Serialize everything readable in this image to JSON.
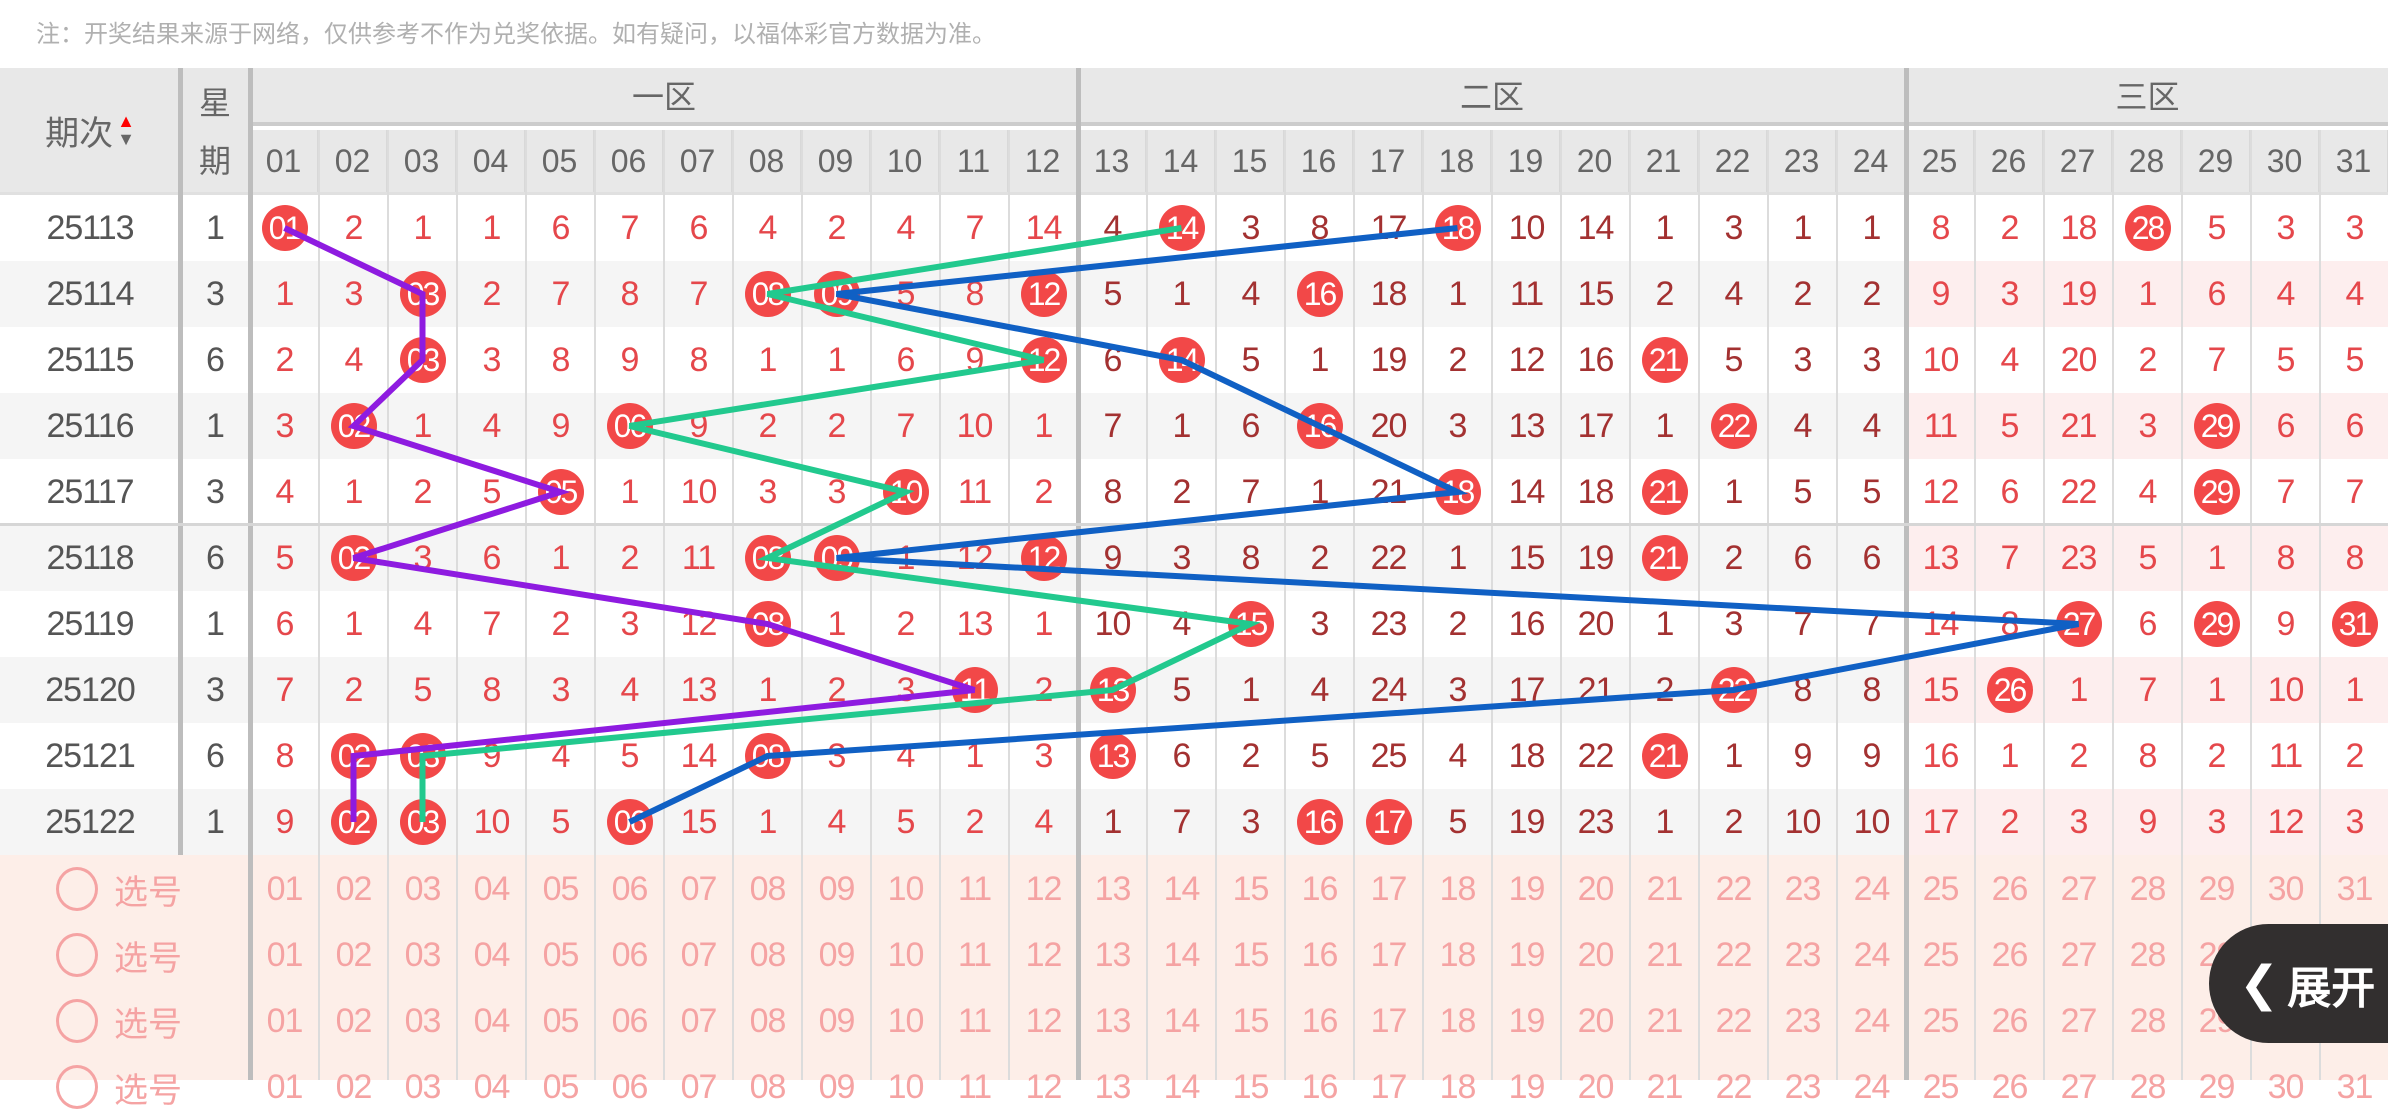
{
  "note": "注：开奖结果来源于网络，仅供参考不作为兑奖依据。如有疑问，以福体彩官方数据为准。",
  "header": {
    "period": "期次",
    "weekday_top": "星",
    "weekday_bottom": "期",
    "zones": [
      "一区",
      "二区",
      "三区"
    ],
    "numbers": [
      "01",
      "02",
      "03",
      "04",
      "05",
      "06",
      "07",
      "08",
      "09",
      "10",
      "11",
      "12",
      "13",
      "14",
      "15",
      "16",
      "17",
      "18",
      "19",
      "20",
      "21",
      "22",
      "23",
      "24",
      "25",
      "26",
      "27",
      "28",
      "29",
      "30",
      "31"
    ]
  },
  "sort_icon": "sort-up-down-icon",
  "colors": {
    "zone1": "#e5474b",
    "zone2": "#a33131",
    "zone3": "#e5474b",
    "ball": "#f24848",
    "line1": "#8e1be0",
    "line2": "#22c98e",
    "line3": "#1060c4"
  },
  "rows": [
    {
      "period": "25113",
      "weekday": "1",
      "cells": [
        "01",
        "2",
        "1",
        "1",
        "6",
        "7",
        "6",
        "4",
        "2",
        "4",
        "7",
        "14",
        "4",
        "14",
        "3",
        "8",
        "17",
        "18",
        "10",
        "14",
        "1",
        "3",
        "1",
        "1",
        "8",
        "2",
        "18",
        "28",
        "5",
        "3",
        "3"
      ],
      "balls": [
        1,
        14,
        18,
        28
      ]
    },
    {
      "period": "25114",
      "weekday": "3",
      "cells": [
        "1",
        "3",
        "03",
        "2",
        "7",
        "8",
        "7",
        "08",
        "09",
        "5",
        "8",
        "12",
        "5",
        "1",
        "4",
        "16",
        "18",
        "1",
        "11",
        "15",
        "2",
        "4",
        "2",
        "2",
        "9",
        "3",
        "19",
        "1",
        "6",
        "4",
        "4"
      ],
      "balls": [
        3,
        8,
        9,
        12,
        16
      ]
    },
    {
      "period": "25115",
      "weekday": "6",
      "cells": [
        "2",
        "4",
        "03",
        "3",
        "8",
        "9",
        "8",
        "1",
        "1",
        "6",
        "9",
        "12",
        "6",
        "14",
        "5",
        "1",
        "19",
        "2",
        "12",
        "16",
        "21",
        "5",
        "3",
        "3",
        "10",
        "4",
        "20",
        "2",
        "7",
        "5",
        "5"
      ],
      "balls": [
        3,
        12,
        14,
        21
      ]
    },
    {
      "period": "25116",
      "weekday": "1",
      "cells": [
        "3",
        "02",
        "1",
        "4",
        "9",
        "06",
        "9",
        "2",
        "2",
        "7",
        "10",
        "1",
        "7",
        "1",
        "6",
        "16",
        "20",
        "3",
        "13",
        "17",
        "1",
        "22",
        "4",
        "4",
        "11",
        "5",
        "21",
        "3",
        "29",
        "6",
        "6"
      ],
      "balls": [
        2,
        6,
        16,
        22,
        29
      ]
    },
    {
      "period": "25117",
      "weekday": "3",
      "cells": [
        "4",
        "1",
        "2",
        "5",
        "05",
        "1",
        "10",
        "3",
        "3",
        "10",
        "11",
        "2",
        "8",
        "2",
        "7",
        "1",
        "21",
        "18",
        "14",
        "18",
        "21",
        "1",
        "5",
        "5",
        "12",
        "6",
        "22",
        "4",
        "29",
        "7",
        "7"
      ],
      "balls": [
        5,
        10,
        18,
        21,
        29
      ]
    },
    {
      "period": "25118",
      "weekday": "6",
      "cells": [
        "5",
        "02",
        "3",
        "6",
        "1",
        "2",
        "11",
        "08",
        "09",
        "1",
        "12",
        "12",
        "9",
        "3",
        "8",
        "2",
        "22",
        "1",
        "15",
        "19",
        "21",
        "2",
        "6",
        "6",
        "13",
        "7",
        "23",
        "5",
        "1",
        "8",
        "8"
      ],
      "balls": [
        2,
        8,
        9,
        12,
        21
      ]
    },
    {
      "period": "25119",
      "weekday": "1",
      "cells": [
        "6",
        "1",
        "4",
        "7",
        "2",
        "3",
        "12",
        "08",
        "1",
        "2",
        "13",
        "1",
        "10",
        "4",
        "15",
        "3",
        "23",
        "2",
        "16",
        "20",
        "1",
        "3",
        "7",
        "7",
        "14",
        "8",
        "27",
        "6",
        "29",
        "9",
        "31"
      ],
      "balls": [
        8,
        15,
        27,
        29,
        31
      ]
    },
    {
      "period": "25120",
      "weekday": "3",
      "cells": [
        "7",
        "2",
        "5",
        "8",
        "3",
        "4",
        "13",
        "1",
        "2",
        "3",
        "11",
        "2",
        "13",
        "5",
        "1",
        "4",
        "24",
        "3",
        "17",
        "21",
        "2",
        "22",
        "8",
        "8",
        "15",
        "26",
        "1",
        "7",
        "1",
        "10",
        "1"
      ],
      "balls": [
        11,
        13,
        22,
        26
      ]
    },
    {
      "period": "25121",
      "weekday": "6",
      "cells": [
        "8",
        "02",
        "03",
        "9",
        "4",
        "5",
        "14",
        "08",
        "3",
        "4",
        "1",
        "3",
        "13",
        "6",
        "2",
        "5",
        "25",
        "4",
        "18",
        "22",
        "21",
        "1",
        "9",
        "9",
        "16",
        "1",
        "2",
        "8",
        "2",
        "11",
        "2"
      ],
      "balls": [
        2,
        3,
        8,
        13,
        21
      ]
    },
    {
      "period": "25122",
      "weekday": "1",
      "cells": [
        "9",
        "02",
        "03",
        "10",
        "5",
        "06",
        "15",
        "1",
        "4",
        "5",
        "2",
        "4",
        "1",
        "7",
        "3",
        "16",
        "17",
        "5",
        "19",
        "23",
        "1",
        "2",
        "10",
        "10",
        "17",
        "2",
        "3",
        "9",
        "3",
        "12",
        "3"
      ],
      "balls": [
        2,
        3,
        6,
        16,
        17
      ]
    }
  ],
  "select_rows": [
    {
      "label": "选号"
    },
    {
      "label": "选号"
    },
    {
      "label": "选号"
    },
    {
      "label": "选号"
    }
  ],
  "expand_button": {
    "label": "展开",
    "icon": "chevron-left-icon"
  }
}
